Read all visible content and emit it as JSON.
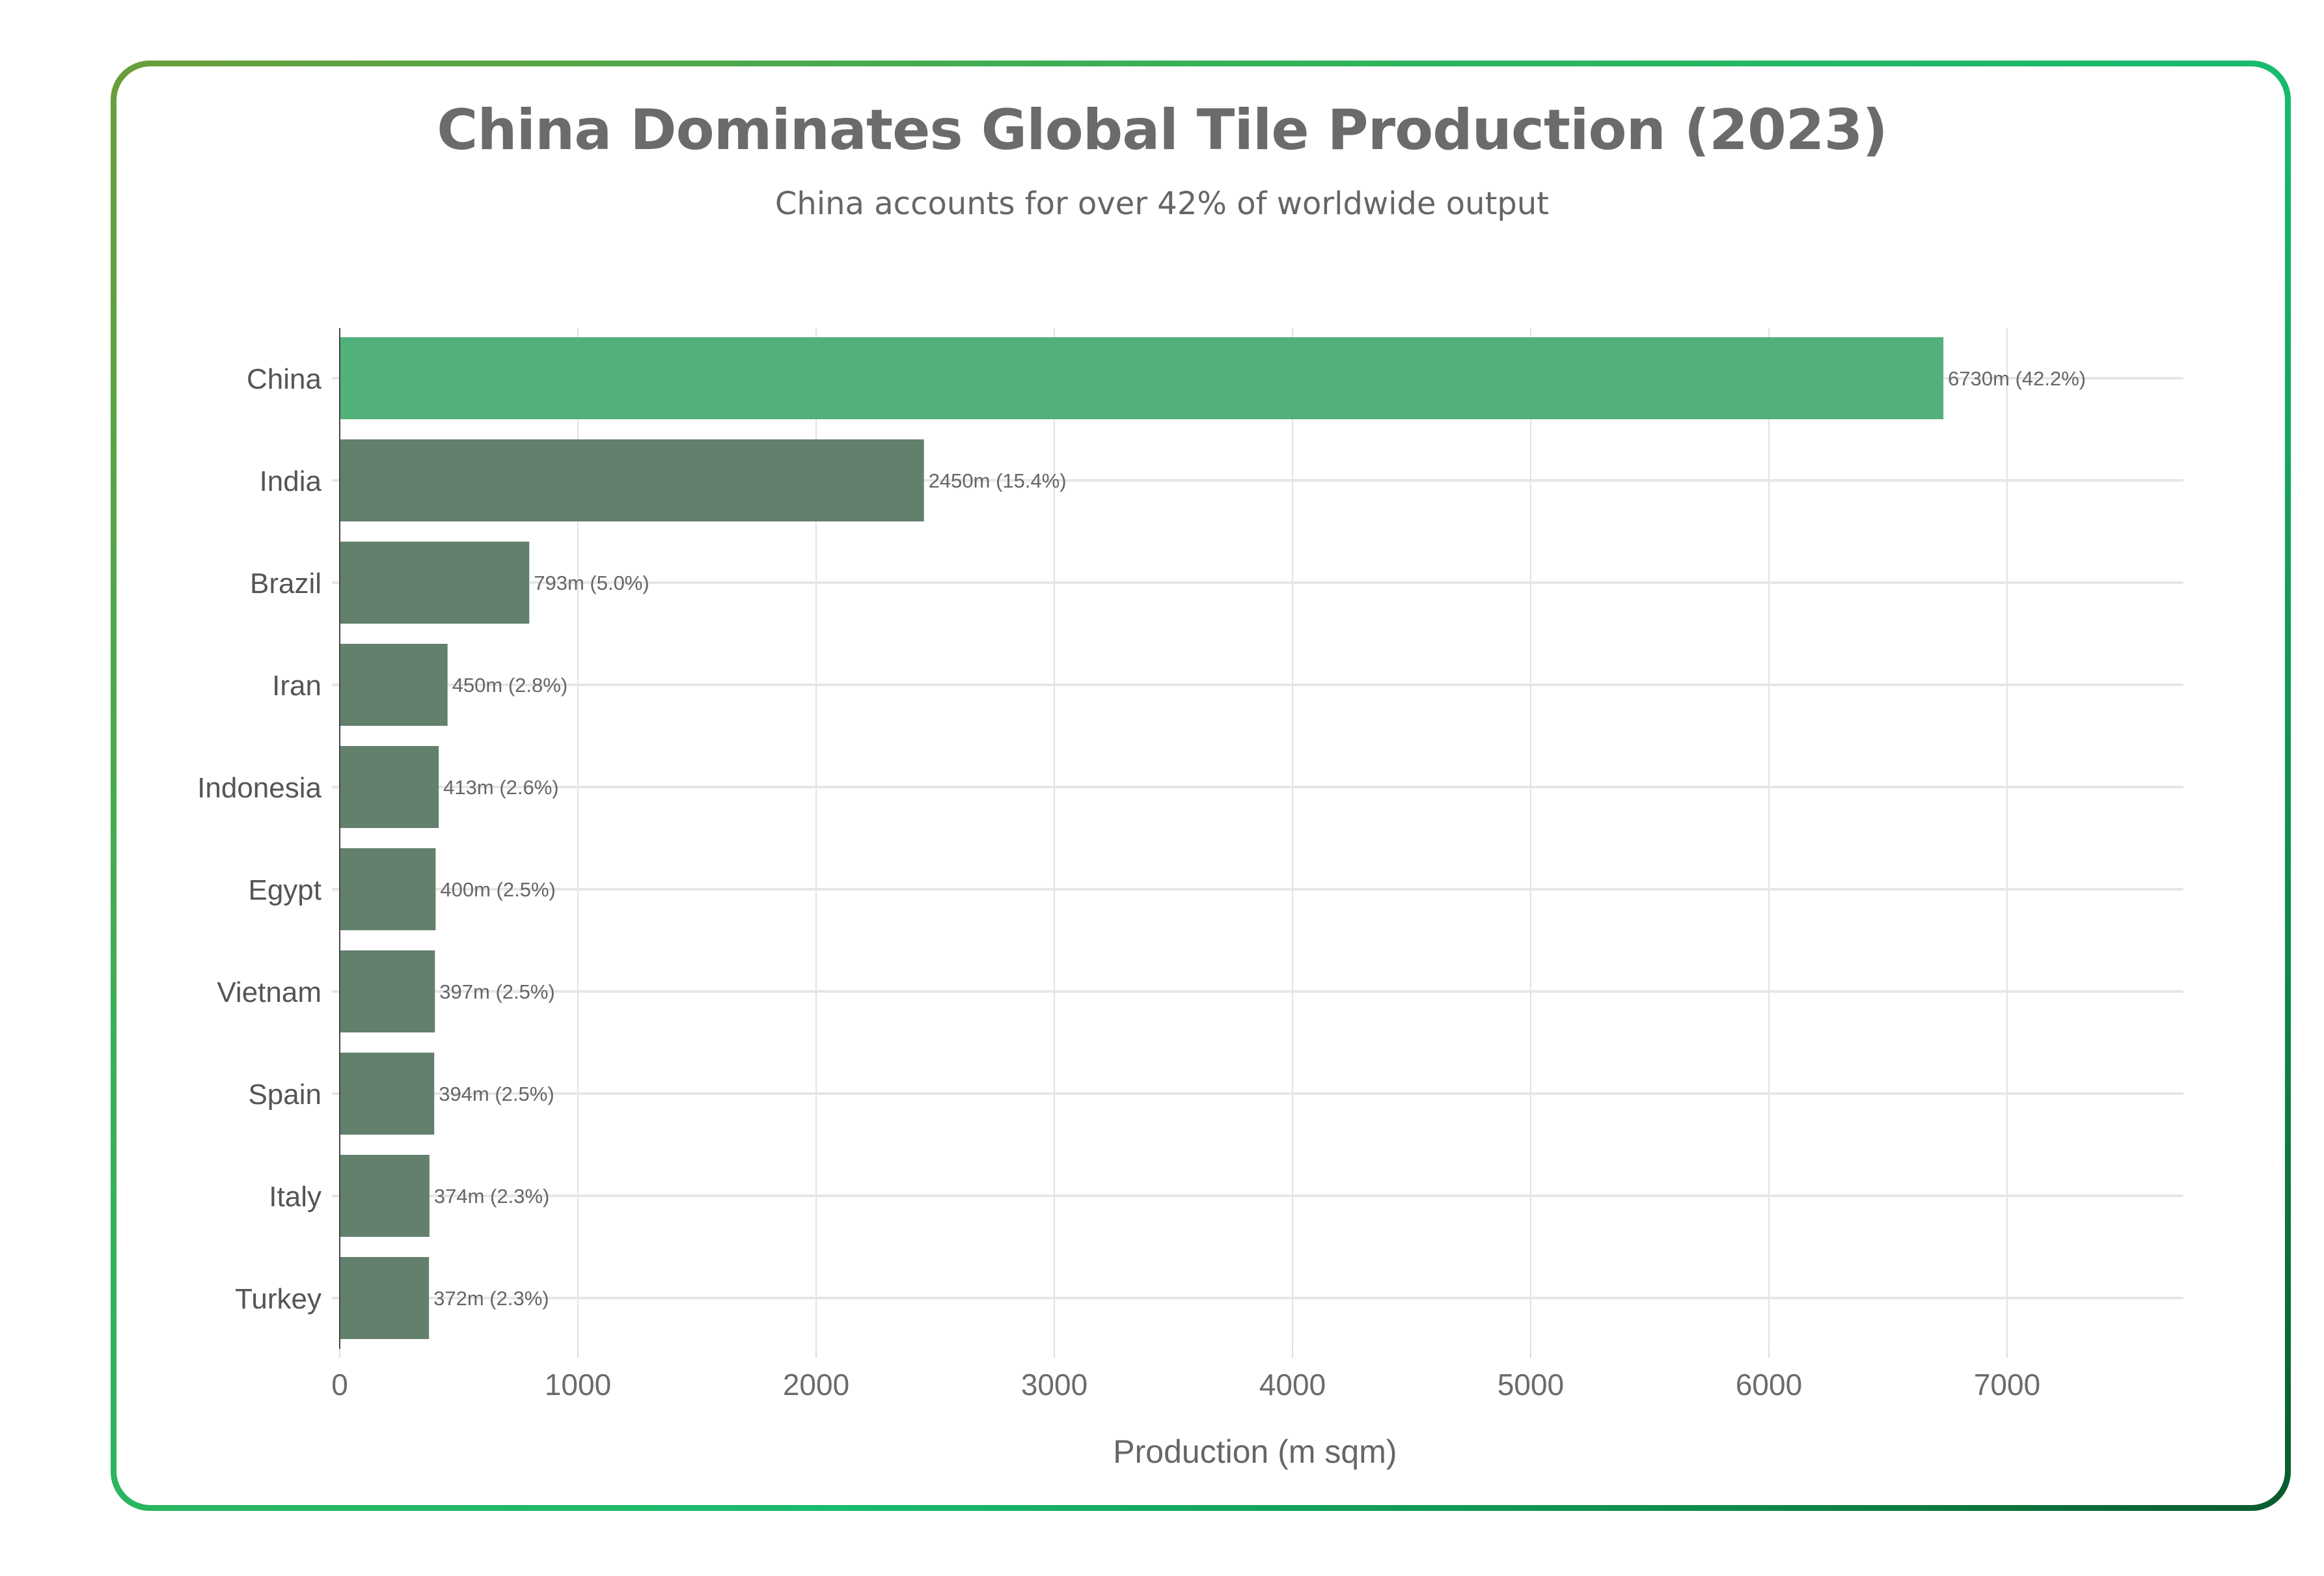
{
  "chart_data": {
    "type": "bar",
    "orientation": "horizontal",
    "title": "China Dominates Global Tile Production (2023)",
    "subtitle": "China accounts for over 42% of worldwide output",
    "xlabel": "Production (m sqm)",
    "ylabel": "",
    "xlim": [
      0,
      7740
    ],
    "xticks": [
      "0",
      "1000",
      "2000",
      "3000",
      "4000",
      "5000",
      "6000",
      "7000"
    ],
    "grid": true,
    "categories": [
      "China",
      "India",
      "Brazil",
      "Iran",
      "Indonesia",
      "Egypt",
      "Vietnam",
      "Spain",
      "Italy",
      "Turkey"
    ],
    "values": [
      6730,
      2450,
      793,
      450,
      413,
      400,
      397,
      394,
      374,
      372
    ],
    "data_labels": [
      "6730m (42.2%)",
      "2450m (15.4%)",
      "793m (5.0%)",
      "450m (2.8%)",
      "413m (2.6%)",
      "400m (2.5%)",
      "397m (2.5%)",
      "394m (2.5%)",
      "374m (2.3%)",
      "372m (2.3%)"
    ],
    "colors": {
      "highlight": "#52b07a",
      "default": "#62806c"
    }
  }
}
